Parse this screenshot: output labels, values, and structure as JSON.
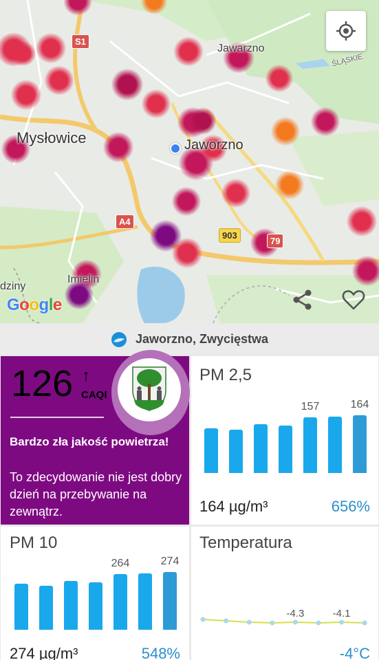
{
  "map": {
    "cities": [
      {
        "id": "myslowice",
        "label": "Mysłowice"
      },
      {
        "id": "jaworzno-center",
        "label": "Jaworzno"
      },
      {
        "id": "jawarzno-north",
        "label": "Jawarzno"
      },
      {
        "id": "imielin",
        "label": "Imielin"
      },
      {
        "id": "dziny",
        "label": "dziny"
      },
      {
        "id": "slaskie",
        "label": "ŚLĄSKIE"
      }
    ],
    "road_shields": [
      {
        "id": "s1",
        "label": "S1",
        "style": "red"
      },
      {
        "id": "a4",
        "label": "A4",
        "style": "red"
      },
      {
        "id": "r903",
        "label": "903",
        "style": "yellow"
      },
      {
        "id": "r79",
        "label": "79",
        "style": "red"
      }
    ],
    "attribution": "Google",
    "current_station": "Jaworzno, Zwycięstwa",
    "actions": {
      "locate_icon": "crosshair-icon",
      "share_icon": "share-icon",
      "favorite_icon": "heart-icon"
    }
  },
  "colors": {
    "very_bad": "#7e0a82",
    "bad": "#e0304e",
    "moderate": "#f47a20",
    "bar_blue": "#1aa8ec",
    "pct_blue": "#2a8fcc"
  },
  "caqi": {
    "value": "126",
    "trend": "↑",
    "unit": "CAQI",
    "heading": "Bardzo zła jakość powietrza!",
    "description": "To zdecydowanie nie jest dobry dzień na przebywanie na zewnątrz.",
    "crest_icon": "jaworzno-coat-of-arms-icon"
  },
  "pm25": {
    "title": "PM 2,5",
    "concentration": "164 µg/m³",
    "percent": "656%",
    "bars": [
      {
        "level": 0.62,
        "label": ""
      },
      {
        "level": 0.6,
        "label": ""
      },
      {
        "level": 0.68,
        "label": ""
      },
      {
        "level": 0.66,
        "label": ""
      },
      {
        "level": 0.77,
        "label": "157"
      },
      {
        "level": 0.78,
        "label": ""
      },
      {
        "level": 0.8,
        "label": "164"
      }
    ]
  },
  "pm10": {
    "title": "PM 10",
    "concentration": "274 µg/m³",
    "percent": "548%",
    "bars": [
      {
        "level": 0.64,
        "label": ""
      },
      {
        "level": 0.61,
        "label": ""
      },
      {
        "level": 0.68,
        "label": ""
      },
      {
        "level": 0.66,
        "label": ""
      },
      {
        "level": 0.77,
        "label": "264"
      },
      {
        "level": 0.78,
        "label": ""
      },
      {
        "level": 0.8,
        "label": "274"
      }
    ]
  },
  "temperature": {
    "title": "Temperatura",
    "value": "-4°C",
    "point_labels": [
      {
        "index": 4,
        "label": "-4.3"
      },
      {
        "index": 6,
        "label": "-4.1"
      }
    ]
  }
}
